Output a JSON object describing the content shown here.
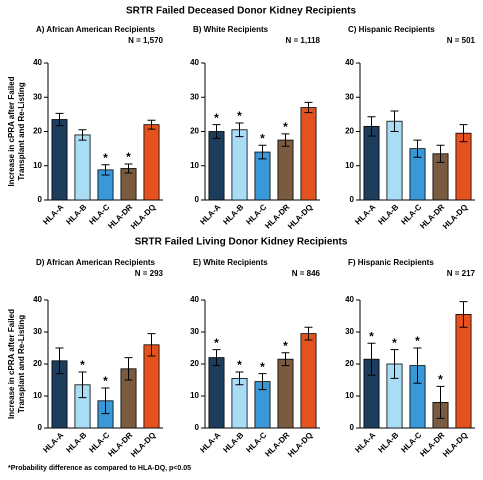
{
  "sections": [
    "SRTR Failed Deceased Donor Kidney Recipients",
    "SRTR Failed Living Donor Kidney Recipients"
  ],
  "footnote": "*Probability difference as compared to HLA-DQ, p<0.05",
  "chart_data": [
    {
      "type": "bar",
      "title": "A) African American Recipients",
      "subtitle": "N = 1,570",
      "y_label": [
        "Increase in cPRA after Failed",
        "Transplant and Re-Listing"
      ],
      "categories": [
        "HLA-A",
        "HLA-B",
        "HLA-C",
        "HLA-DR",
        "HLA-DQ"
      ],
      "colors": [
        "#1d3d5c",
        "#a9ddf6",
        "#3b98d6",
        "#7b5b3f",
        "#e4531f"
      ],
      "values": [
        23.5,
        19,
        8.8,
        9.2,
        22
      ],
      "errors": [
        1.8,
        1.5,
        1.5,
        1.3,
        1.3
      ],
      "significance": [
        null,
        null,
        "*",
        "*",
        null
      ],
      "ylim": [
        0,
        40
      ],
      "yticks": [
        0,
        10,
        20,
        30,
        40
      ]
    },
    {
      "type": "bar",
      "title": "B) White Recipients",
      "subtitle": "N = 1,118",
      "categories": [
        "HLA-A",
        "HLA-B",
        "HLA-C",
        "HLA-DR",
        "HLA-DQ"
      ],
      "colors": [
        "#1d3d5c",
        "#a9ddf6",
        "#3b98d6",
        "#7b5b3f",
        "#e4531f"
      ],
      "values": [
        20,
        20.5,
        14,
        17.5,
        27
      ],
      "errors": [
        2,
        2,
        2,
        1.8,
        1.5
      ],
      "significance": [
        "*",
        "*",
        "*",
        "*",
        null
      ],
      "ylim": [
        0,
        40
      ],
      "yticks": [
        0,
        10,
        20,
        30,
        40
      ]
    },
    {
      "type": "bar",
      "title": "C) Hispanic Recipients",
      "subtitle": "N = 501",
      "categories": [
        "HLA-A",
        "HLA-B",
        "HLA-C",
        "HLA-DR",
        "HLA-DQ"
      ],
      "colors": [
        "#1d3d5c",
        "#a9ddf6",
        "#3b98d6",
        "#7b5b3f",
        "#e4531f"
      ],
      "values": [
        21.5,
        23,
        15,
        13.5,
        19.5
      ],
      "errors": [
        2.8,
        3,
        2.5,
        2.5,
        2.5
      ],
      "significance": [
        null,
        null,
        null,
        null,
        null
      ],
      "ylim": [
        0,
        40
      ],
      "yticks": [
        0,
        10,
        20,
        30,
        40
      ]
    },
    {
      "type": "bar",
      "title": "D) African American Recipients",
      "subtitle": "N = 293",
      "y_label": [
        "Increase in cPRA after Failed",
        "Transplant and Re-Listing"
      ],
      "categories": [
        "HLA-A",
        "HLA-B",
        "HLA-C",
        "HLA-DR",
        "HLA-DQ"
      ],
      "colors": [
        "#1d3d5c",
        "#a9ddf6",
        "#3b98d6",
        "#7b5b3f",
        "#e4531f"
      ],
      "values": [
        21,
        13.5,
        8.5,
        18.5,
        26
      ],
      "errors": [
        4,
        4,
        4,
        3.5,
        3.5
      ],
      "significance": [
        null,
        "*",
        "*",
        null,
        null
      ],
      "ylim": [
        0,
        40
      ],
      "yticks": [
        0,
        10,
        20,
        30,
        40
      ]
    },
    {
      "type": "bar",
      "title": "E) White Recipients",
      "subtitle": "N = 846",
      "categories": [
        "HLA-A",
        "HLA-B",
        "HLA-C",
        "HLA-DR",
        "HLA-DQ"
      ],
      "colors": [
        "#1d3d5c",
        "#a9ddf6",
        "#3b98d6",
        "#7b5b3f",
        "#e4531f"
      ],
      "values": [
        22,
        15.5,
        14.5,
        21.5,
        29.5
      ],
      "errors": [
        2.5,
        2,
        2.5,
        2,
        2
      ],
      "significance": [
        "*",
        "*",
        "*",
        "*",
        null
      ],
      "ylim": [
        0,
        40
      ],
      "yticks": [
        0,
        10,
        20,
        30,
        40
      ]
    },
    {
      "type": "bar",
      "title": "F) Hispanic Recipients",
      "subtitle": "N = 217",
      "categories": [
        "HLA-A",
        "HLA-B",
        "HLA-C",
        "HLA-DR",
        "HLA-DQ"
      ],
      "colors": [
        "#1d3d5c",
        "#a9ddf6",
        "#3b98d6",
        "#7b5b3f",
        "#e4531f"
      ],
      "values": [
        21.5,
        20,
        19.5,
        8,
        35.5
      ],
      "errors": [
        5,
        4.5,
        5.5,
        5,
        4
      ],
      "significance": [
        "*",
        "*",
        "*",
        "*",
        null
      ],
      "ylim": [
        0,
        40
      ],
      "yticks": [
        0,
        10,
        20,
        30,
        40
      ]
    }
  ]
}
